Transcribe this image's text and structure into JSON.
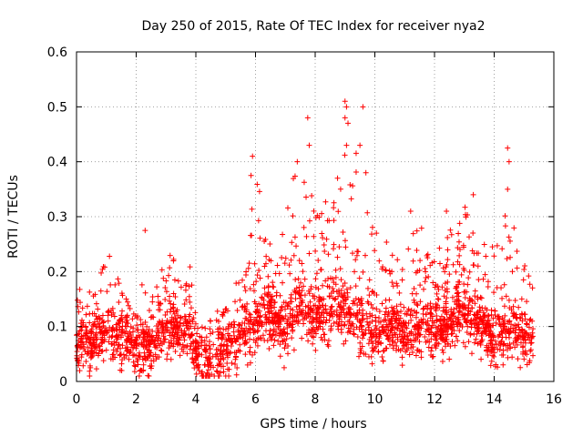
{
  "chart_data": {
    "type": "scatter",
    "title": "Day 250 of 2015, Rate Of TEC Index for receiver nya2",
    "xlabel": "GPS time / hours",
    "ylabel": "ROTI / TECUs",
    "xlim": [
      0,
      16
    ],
    "ylim": [
      0,
      0.6
    ],
    "xticks": [
      0,
      2,
      4,
      6,
      8,
      10,
      12,
      14,
      16
    ],
    "xtick_labels": [
      "0",
      "2",
      "4",
      "6",
      "8",
      "10",
      "12",
      "14",
      "16"
    ],
    "yticks": [
      0,
      0.1,
      0.2,
      0.3,
      0.4,
      0.5,
      0.6
    ],
    "ytick_labels": [
      "0",
      "0.1",
      "0.2",
      "0.3",
      "0.4",
      "0.5",
      "0.6"
    ],
    "grid": true,
    "marker": "+",
    "series_color": "#ff0000",
    "data_extent_hours": [
      0,
      15.3
    ],
    "envelope": {
      "hours": [
        0.0,
        0.25,
        0.5,
        0.75,
        1.0,
        1.25,
        1.5,
        1.75,
        2.0,
        2.25,
        2.5,
        2.75,
        3.0,
        3.25,
        3.5,
        3.75,
        4.0,
        4.25,
        4.5,
        4.75,
        5.0,
        5.25,
        5.5,
        5.75,
        6.0,
        6.25,
        6.5,
        6.75,
        7.0,
        7.25,
        7.5,
        7.75,
        8.0,
        8.25,
        8.5,
        8.75,
        9.0,
        9.25,
        9.5,
        9.75,
        10.0,
        10.25,
        10.5,
        10.75,
        11.0,
        11.25,
        11.5,
        11.75,
        12.0,
        12.25,
        12.5,
        12.75,
        13.0,
        13.25,
        13.5,
        13.75,
        14.0,
        14.25,
        14.5,
        14.75,
        15.0,
        15.3
      ],
      "median": [
        0.06,
        0.07,
        0.07,
        0.08,
        0.09,
        0.08,
        0.08,
        0.07,
        0.06,
        0.06,
        0.07,
        0.08,
        0.09,
        0.09,
        0.08,
        0.09,
        0.05,
        0.04,
        0.04,
        0.05,
        0.05,
        0.07,
        0.08,
        0.09,
        0.1,
        0.11,
        0.12,
        0.1,
        0.09,
        0.12,
        0.14,
        0.12,
        0.11,
        0.12,
        0.13,
        0.14,
        0.13,
        0.11,
        0.1,
        0.09,
        0.08,
        0.08,
        0.09,
        0.1,
        0.09,
        0.08,
        0.09,
        0.1,
        0.1,
        0.09,
        0.1,
        0.11,
        0.12,
        0.11,
        0.1,
        0.09,
        0.08,
        0.08,
        0.09,
        0.08,
        0.08,
        0.07
      ],
      "upper": [
        0.16,
        0.19,
        0.17,
        0.2,
        0.25,
        0.21,
        0.18,
        0.15,
        0.12,
        0.21,
        0.15,
        0.18,
        0.25,
        0.24,
        0.21,
        0.25,
        0.12,
        0.1,
        0.12,
        0.15,
        0.15,
        0.18,
        0.2,
        0.22,
        0.41,
        0.3,
        0.25,
        0.24,
        0.3,
        0.4,
        0.32,
        0.48,
        0.35,
        0.3,
        0.38,
        0.33,
        0.51,
        0.36,
        0.5,
        0.38,
        0.28,
        0.27,
        0.25,
        0.23,
        0.22,
        0.27,
        0.3,
        0.24,
        0.26,
        0.25,
        0.28,
        0.3,
        0.34,
        0.29,
        0.26,
        0.25,
        0.32,
        0.28,
        0.42,
        0.26,
        0.22,
        0.18
      ]
    },
    "notable_points": [
      {
        "x": 9.0,
        "y": 0.51
      },
      {
        "x": 9.05,
        "y": 0.5
      },
      {
        "x": 9.6,
        "y": 0.5
      },
      {
        "x": 9.0,
        "y": 0.48
      },
      {
        "x": 7.75,
        "y": 0.48
      },
      {
        "x": 9.1,
        "y": 0.47
      },
      {
        "x": 9.05,
        "y": 0.43
      },
      {
        "x": 9.5,
        "y": 0.43
      },
      {
        "x": 7.8,
        "y": 0.43
      },
      {
        "x": 14.45,
        "y": 0.425
      },
      {
        "x": 5.9,
        "y": 0.41
      },
      {
        "x": 7.4,
        "y": 0.4
      },
      {
        "x": 14.5,
        "y": 0.4
      },
      {
        "x": 9.7,
        "y": 0.38
      },
      {
        "x": 5.85,
        "y": 0.375
      },
      {
        "x": 8.75,
        "y": 0.37
      },
      {
        "x": 14.45,
        "y": 0.35
      },
      {
        "x": 13.3,
        "y": 0.34
      },
      {
        "x": 2.3,
        "y": 0.275
      },
      {
        "x": 11.2,
        "y": 0.31
      },
      {
        "x": 12.4,
        "y": 0.31
      }
    ]
  }
}
